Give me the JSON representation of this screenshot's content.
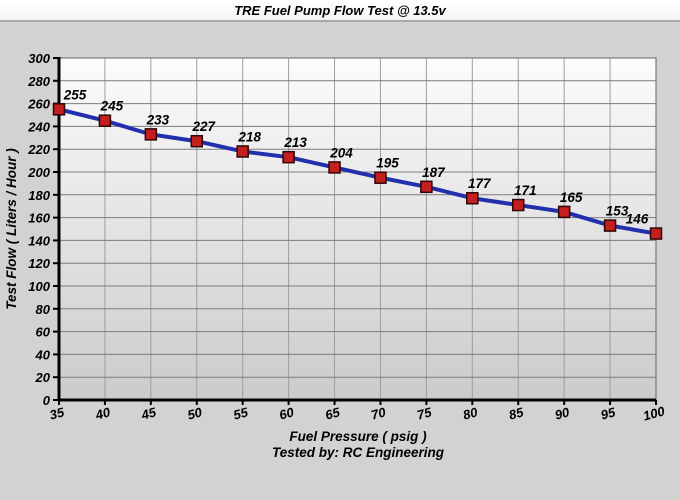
{
  "title": "TRE Fuel Pump Flow Test @ 13.5v",
  "chart_data": {
    "type": "line",
    "title": "TRE Fuel Pump Flow Test @ 13.5v",
    "x": [
      35,
      40,
      45,
      50,
      55,
      60,
      65,
      70,
      75,
      80,
      85,
      90,
      95,
      100
    ],
    "values": [
      255,
      245,
      233,
      227,
      218,
      213,
      204,
      195,
      187,
      177,
      171,
      165,
      153,
      146
    ],
    "point_labels": [
      "255",
      "245",
      "233",
      "227",
      "218",
      "213",
      "204",
      "195",
      "187",
      "177",
      "171",
      "165",
      "153",
      "146"
    ],
    "xlabel": "Fuel Pressure ( psig )",
    "ylabel": "Test Flow ( Liters / Hour )",
    "footer": "Tested by: RC Engineering",
    "xlim": [
      35,
      100
    ],
    "ylim": [
      0,
      300
    ],
    "x_ticks": [
      35,
      40,
      45,
      50,
      55,
      60,
      65,
      70,
      75,
      80,
      85,
      90,
      95,
      100
    ],
    "y_ticks": [
      0,
      20,
      40,
      60,
      80,
      100,
      120,
      140,
      160,
      180,
      200,
      220,
      240,
      260,
      280,
      300
    ],
    "grid": true,
    "legend": "none",
    "colors": {
      "line": "#2230ae",
      "marker_fill": "#c41f1f",
      "marker_stroke": "#2e0606",
      "h_grid": "#7d7d7d",
      "v_grid": "#9e9e9e",
      "axis": "#000000",
      "plot_border": "#666666",
      "plot_bg_top": "#fcfcfc",
      "plot_bg_bottom": "#cbcbcb",
      "page_bg": "#d2d2d2",
      "title_band_bg": "#ffffff"
    }
  }
}
